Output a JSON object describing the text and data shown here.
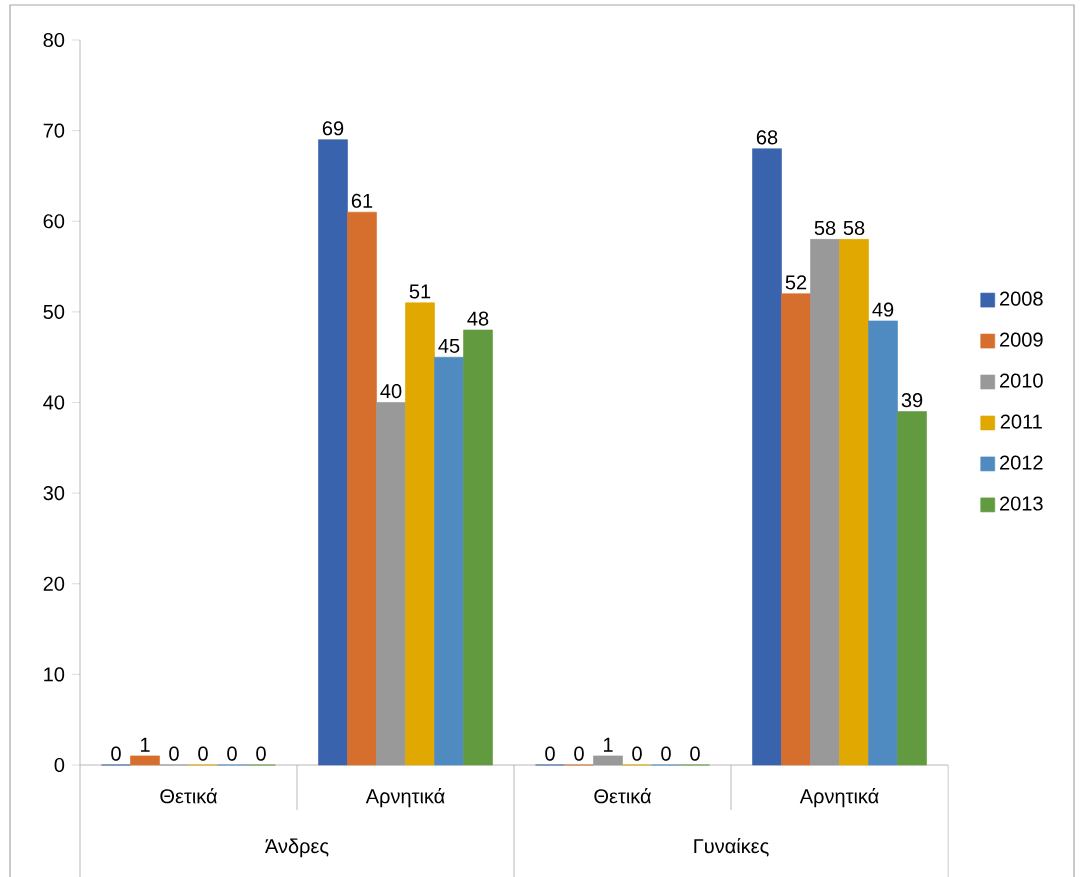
{
  "chart_data": {
    "type": "bar",
    "categories": [
      "Θετικά",
      "Αρνητικά",
      "Θετικά",
      "Αρνητικά"
    ],
    "series": [
      {
        "name": "2008",
        "color": "#3a63ad",
        "values": [
          0,
          69,
          0,
          68
        ]
      },
      {
        "name": "2009",
        "color": "#d66f2d",
        "values": [
          1,
          61,
          0,
          52
        ]
      },
      {
        "name": "2010",
        "color": "#999999",
        "values": [
          0,
          40,
          1,
          58
        ]
      },
      {
        "name": "2011",
        "color": "#e0a800",
        "values": [
          0,
          51,
          0,
          58
        ]
      },
      {
        "name": "2012",
        "color": "#4f8bc1",
        "values": [
          0,
          45,
          0,
          49
        ]
      },
      {
        "name": "2013",
        "color": "#629b3f",
        "values": [
          0,
          48,
          0,
          39
        ]
      }
    ],
    "ylim": [
      0,
      80
    ],
    "yticks": [
      0,
      10,
      20,
      30,
      40,
      50,
      60,
      70,
      80
    ],
    "data_labels": true,
    "legend": "right",
    "annotations": [
      "Άνδρες",
      "Γυναίκες"
    ]
  }
}
